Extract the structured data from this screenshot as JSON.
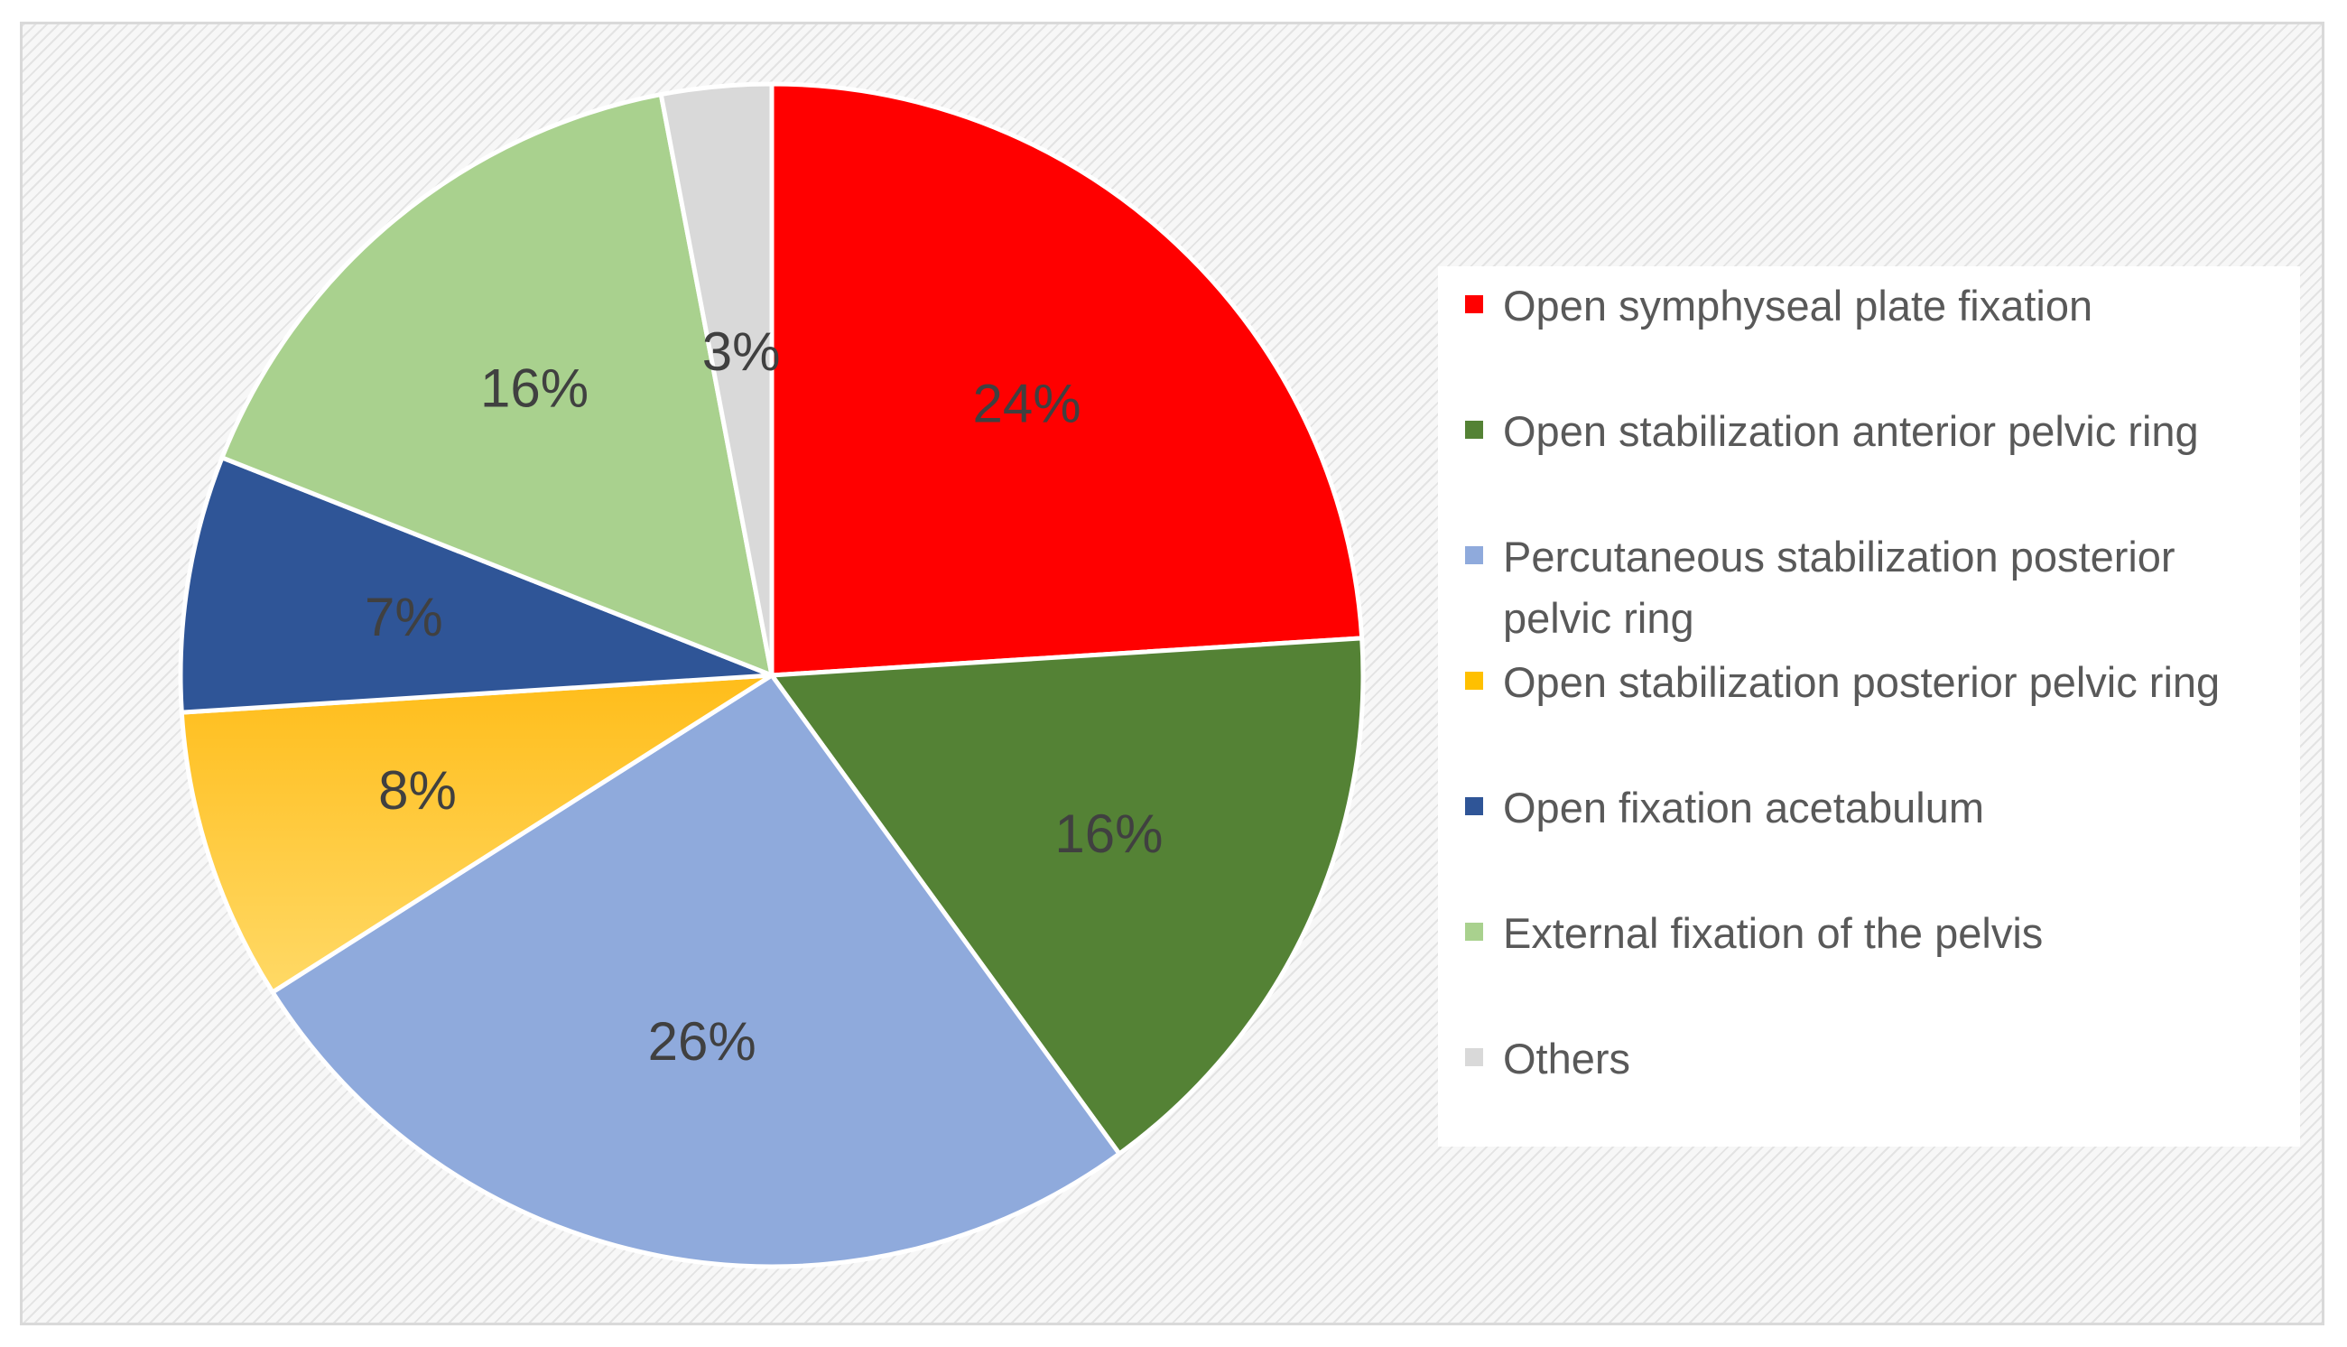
{
  "chart_data": {
    "type": "pie",
    "title": "",
    "legend_position": "right",
    "slices": [
      {
        "name": "Open symphyseal plate fixation",
        "value": 24,
        "label": "24%",
        "color": "#ff0000"
      },
      {
        "name": "Open stabilization anterior pelvic ring",
        "value": 16,
        "label": "16%",
        "color": "#548235"
      },
      {
        "name": "Percutaneous stabilization posterior pelvic ring",
        "value": 26,
        "label": "26%",
        "color": "#8faadc"
      },
      {
        "name": "Open stabilization posterior pelvic ring",
        "value": 8,
        "label": "8%",
        "color": "#ffc000"
      },
      {
        "name": "Open fixation acetabulum",
        "value": 7,
        "label": "7%",
        "color": "#2f5597"
      },
      {
        "name": "External fixation of the pelvis",
        "value": 16,
        "label": "16%",
        "color": "#a9d18e"
      },
      {
        "name": "Others",
        "value": 3,
        "label": "3%",
        "color": "#d9d9d9"
      }
    ]
  }
}
